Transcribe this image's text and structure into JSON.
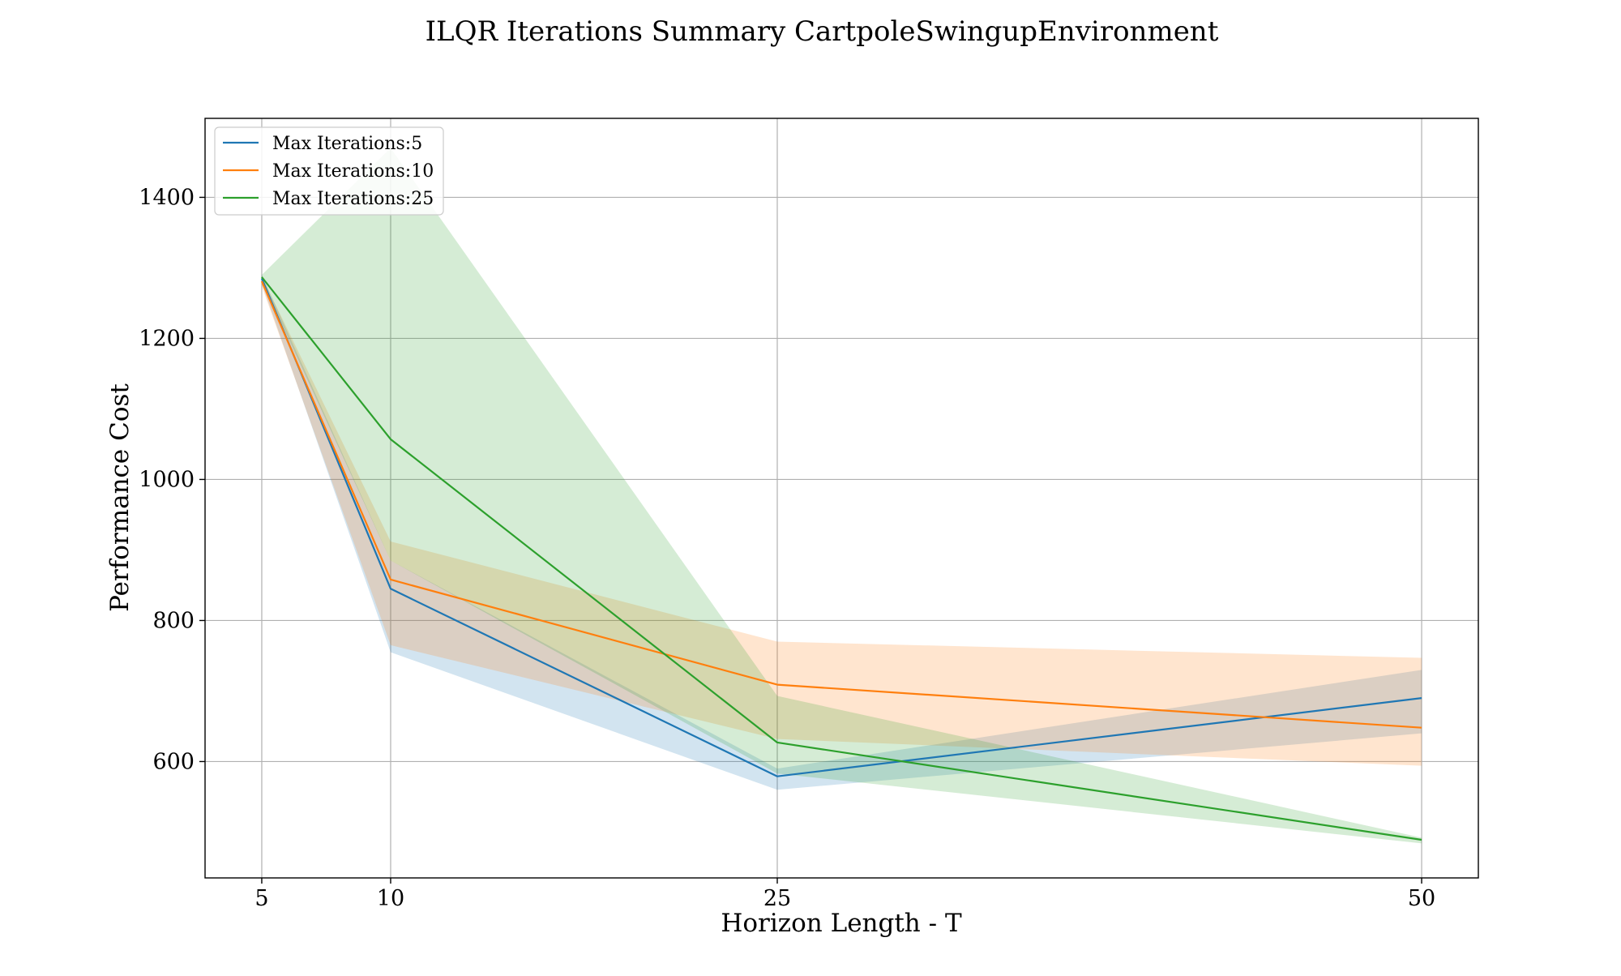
{
  "chart_data": {
    "type": "line",
    "title": "ILQR Iterations Summary CartpoleSwingupEnvironment",
    "xlabel": "Horizon Length - T",
    "ylabel": "Performance Cost",
    "x": [
      5,
      10,
      25,
      50
    ],
    "x_ticks": [
      5,
      10,
      25,
      50
    ],
    "y_ticks": [
      600,
      800,
      1000,
      1200,
      1400
    ],
    "xlim": [
      2.8,
      52.2
    ],
    "ylim": [
      435,
      1512
    ],
    "grid": true,
    "legend_position": "top-left",
    "series": [
      {
        "name": "Max Iterations:5",
        "color": "#1f77b4",
        "values": [
          1285,
          845,
          579,
          690
        ],
        "lower": [
          1278,
          755,
          560,
          640
        ],
        "upper": [
          1290,
          885,
          590,
          730
        ]
      },
      {
        "name": "Max Iterations:10",
        "color": "#ff7f0e",
        "values": [
          1281,
          858,
          709,
          648
        ],
        "lower": [
          1274,
          765,
          632,
          594
        ],
        "upper": [
          1288,
          912,
          770,
          747
        ]
      },
      {
        "name": "Max Iterations:25",
        "color": "#2ca02c",
        "values": [
          1287,
          1057,
          627,
          489
        ],
        "lower": [
          1282,
          885,
          583,
          484
        ],
        "upper": [
          1290,
          1470,
          693,
          492
        ]
      }
    ]
  }
}
